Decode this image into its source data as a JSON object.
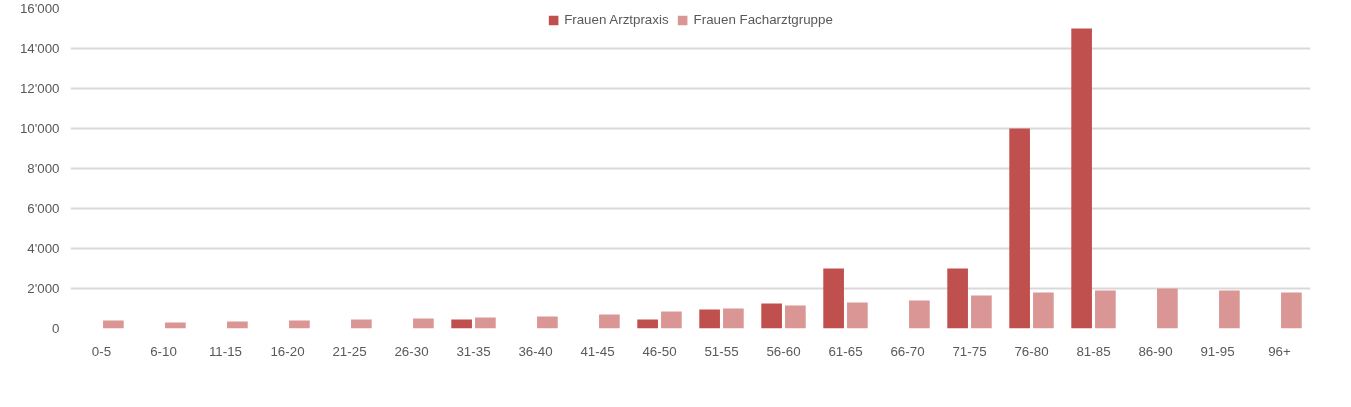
{
  "chart_data": {
    "type": "bar",
    "categories": [
      "0-5",
      "6-10",
      "11-15",
      "16-20",
      "21-25",
      "26-30",
      "31-35",
      "36-40",
      "41-45",
      "46-50",
      "51-55",
      "56-60",
      "61-65",
      "66-70",
      "71-75",
      "76-80",
      "81-85",
      "86-90",
      "91-95",
      "96+"
    ],
    "series": [
      {
        "name": "Frauen Arztpraxis",
        "color": "#c0504d",
        "values": [
          null,
          null,
          null,
          null,
          null,
          null,
          450,
          null,
          null,
          450,
          950,
          1250,
          3000,
          null,
          3000,
          10000,
          15000,
          null,
          null,
          null
        ]
      },
      {
        "name": "Frauen Facharztgruppe",
        "color": "#d99694",
        "values": [
          400,
          300,
          350,
          400,
          450,
          500,
          550,
          600,
          700,
          850,
          1000,
          1150,
          1300,
          1400,
          1650,
          1800,
          1900,
          2000,
          1900,
          1800
        ]
      }
    ],
    "ylim": [
      0,
      16000
    ],
    "yticks": [
      0,
      {
        "value": 2000,
        "label": "2'000"
      },
      {
        "value": 4000,
        "label": "4'000"
      },
      {
        "value": 6000,
        "label": "6'000"
      },
      {
        "value": 8000,
        "label": "8'000"
      },
      {
        "value": 10000,
        "label": "10'000"
      },
      {
        "value": 12000,
        "label": "12'000"
      },
      {
        "value": 14000,
        "label": "14'000"
      },
      {
        "value": 16000,
        "label": "16'000"
      }
    ],
    "grid": "y",
    "legend": "top"
  }
}
